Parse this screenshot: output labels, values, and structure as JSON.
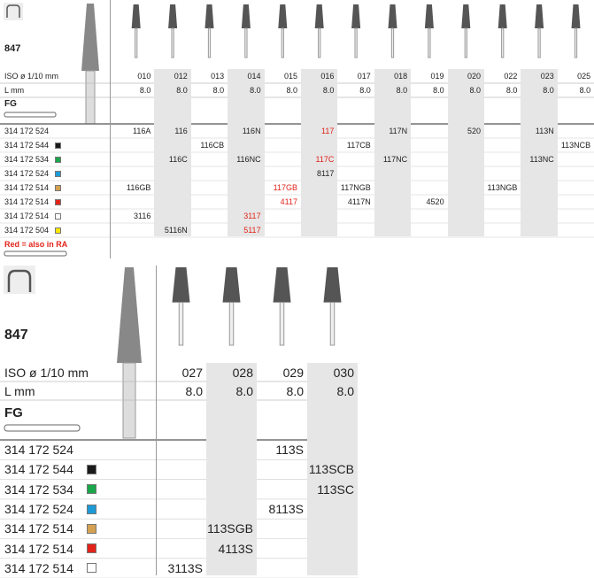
{
  "top": {
    "label": "847",
    "iso_label": "ISO ø 1/10 mm",
    "length_label": "L mm",
    "shank_label": "FG",
    "columns": [
      {
        "iso": "010",
        "length": "8.0"
      },
      {
        "iso": "012",
        "length": "8.0"
      },
      {
        "iso": "013",
        "length": "8.0"
      },
      {
        "iso": "014",
        "length": "8.0"
      },
      {
        "iso": "015",
        "length": "8.0"
      },
      {
        "iso": "016",
        "length": "8.0"
      },
      {
        "iso": "017",
        "length": "8.0"
      },
      {
        "iso": "018",
        "length": "8.0"
      },
      {
        "iso": "019",
        "length": "8.0"
      },
      {
        "iso": "020",
        "length": "8.0"
      },
      {
        "iso": "022",
        "length": "8.0"
      },
      {
        "iso": "023",
        "length": "8.0"
      },
      {
        "iso": "025",
        "length": "8.0"
      }
    ],
    "rows": [
      {
        "code": "314 172 524",
        "cells": [
          "116A",
          "116",
          null,
          "116N",
          null,
          {
            "text": "117",
            "red": true
          },
          null,
          "117N",
          null,
          "520",
          null,
          "113N",
          null
        ]
      },
      {
        "code": "314 172 544",
        "swatch": "#1a1a1a",
        "cells": [
          null,
          null,
          "116CB",
          null,
          null,
          null,
          "117CB",
          null,
          null,
          null,
          null,
          null,
          "113NCB"
        ]
      },
      {
        "code": "314 172 534",
        "swatch": "#1aa64a",
        "cells": [
          null,
          "116C",
          null,
          "116NC",
          null,
          {
            "text": "117C",
            "red": true
          },
          null,
          "117NC",
          null,
          null,
          null,
          "113NC",
          null
        ]
      },
      {
        "code": "314 172 524",
        "swatch": "#1e9ad6",
        "cells": [
          null,
          null,
          null,
          null,
          null,
          "8117",
          null,
          null,
          null,
          null,
          null,
          null,
          null
        ]
      },
      {
        "code": "314 172 514",
        "swatch": "#d4a052",
        "cells": [
          "116GB",
          null,
          null,
          null,
          {
            "text": "117GB",
            "red": true
          },
          null,
          "117NGB",
          null,
          null,
          null,
          "113NGB",
          null,
          null
        ]
      },
      {
        "code": "314 172 514",
        "swatch": "#e2231a",
        "cells": [
          null,
          null,
          null,
          null,
          {
            "text": "4117",
            "red": true
          },
          null,
          "4117N",
          null,
          "4520",
          null,
          null,
          null,
          null
        ]
      },
      {
        "code": "314 172 514",
        "swatch": "#ffffff",
        "cells": [
          "3116",
          null,
          null,
          {
            "text": "3117",
            "red": true
          },
          null,
          null,
          null,
          null,
          null,
          null,
          null,
          null,
          null
        ]
      },
      {
        "code": "314 172 504",
        "swatch": "#ffe600",
        "cells": [
          null,
          "5116N",
          null,
          {
            "text": "5117",
            "red": true
          },
          null,
          null,
          null,
          null,
          null,
          null,
          null,
          null,
          null
        ]
      }
    ],
    "note": "Red = also in RA"
  },
  "bottom": {
    "label": "847",
    "iso_label": "ISO ø 1/10 mm",
    "length_label": "L mm",
    "shank_label": "FG",
    "columns": [
      {
        "iso": "027",
        "length": "8.0"
      },
      {
        "iso": "028",
        "length": "8.0"
      },
      {
        "iso": "029",
        "length": "8.0"
      },
      {
        "iso": "030",
        "length": "8.0"
      }
    ],
    "rows": [
      {
        "code": "314 172 524",
        "cells": [
          null,
          null,
          "113S",
          null
        ]
      },
      {
        "code": "314 172 544",
        "swatch": "#1a1a1a",
        "cells": [
          null,
          null,
          null,
          "113SCB"
        ]
      },
      {
        "code": "314 172 534",
        "swatch": "#1aa64a",
        "cells": [
          null,
          null,
          null,
          "113SC"
        ]
      },
      {
        "code": "314 172 524",
        "swatch": "#1e9ad6",
        "cells": [
          null,
          null,
          "8113S",
          null
        ]
      },
      {
        "code": "314 172 514",
        "swatch": "#d4a052",
        "cells": [
          null,
          "113SGB",
          null,
          null
        ]
      },
      {
        "code": "314 172 514",
        "swatch": "#e2231a",
        "cells": [
          null,
          "4113S",
          null,
          null
        ]
      },
      {
        "code": "314 172 514",
        "swatch": "#ffffff",
        "cells": [
          "3113S",
          null,
          null,
          null
        ]
      }
    ]
  }
}
